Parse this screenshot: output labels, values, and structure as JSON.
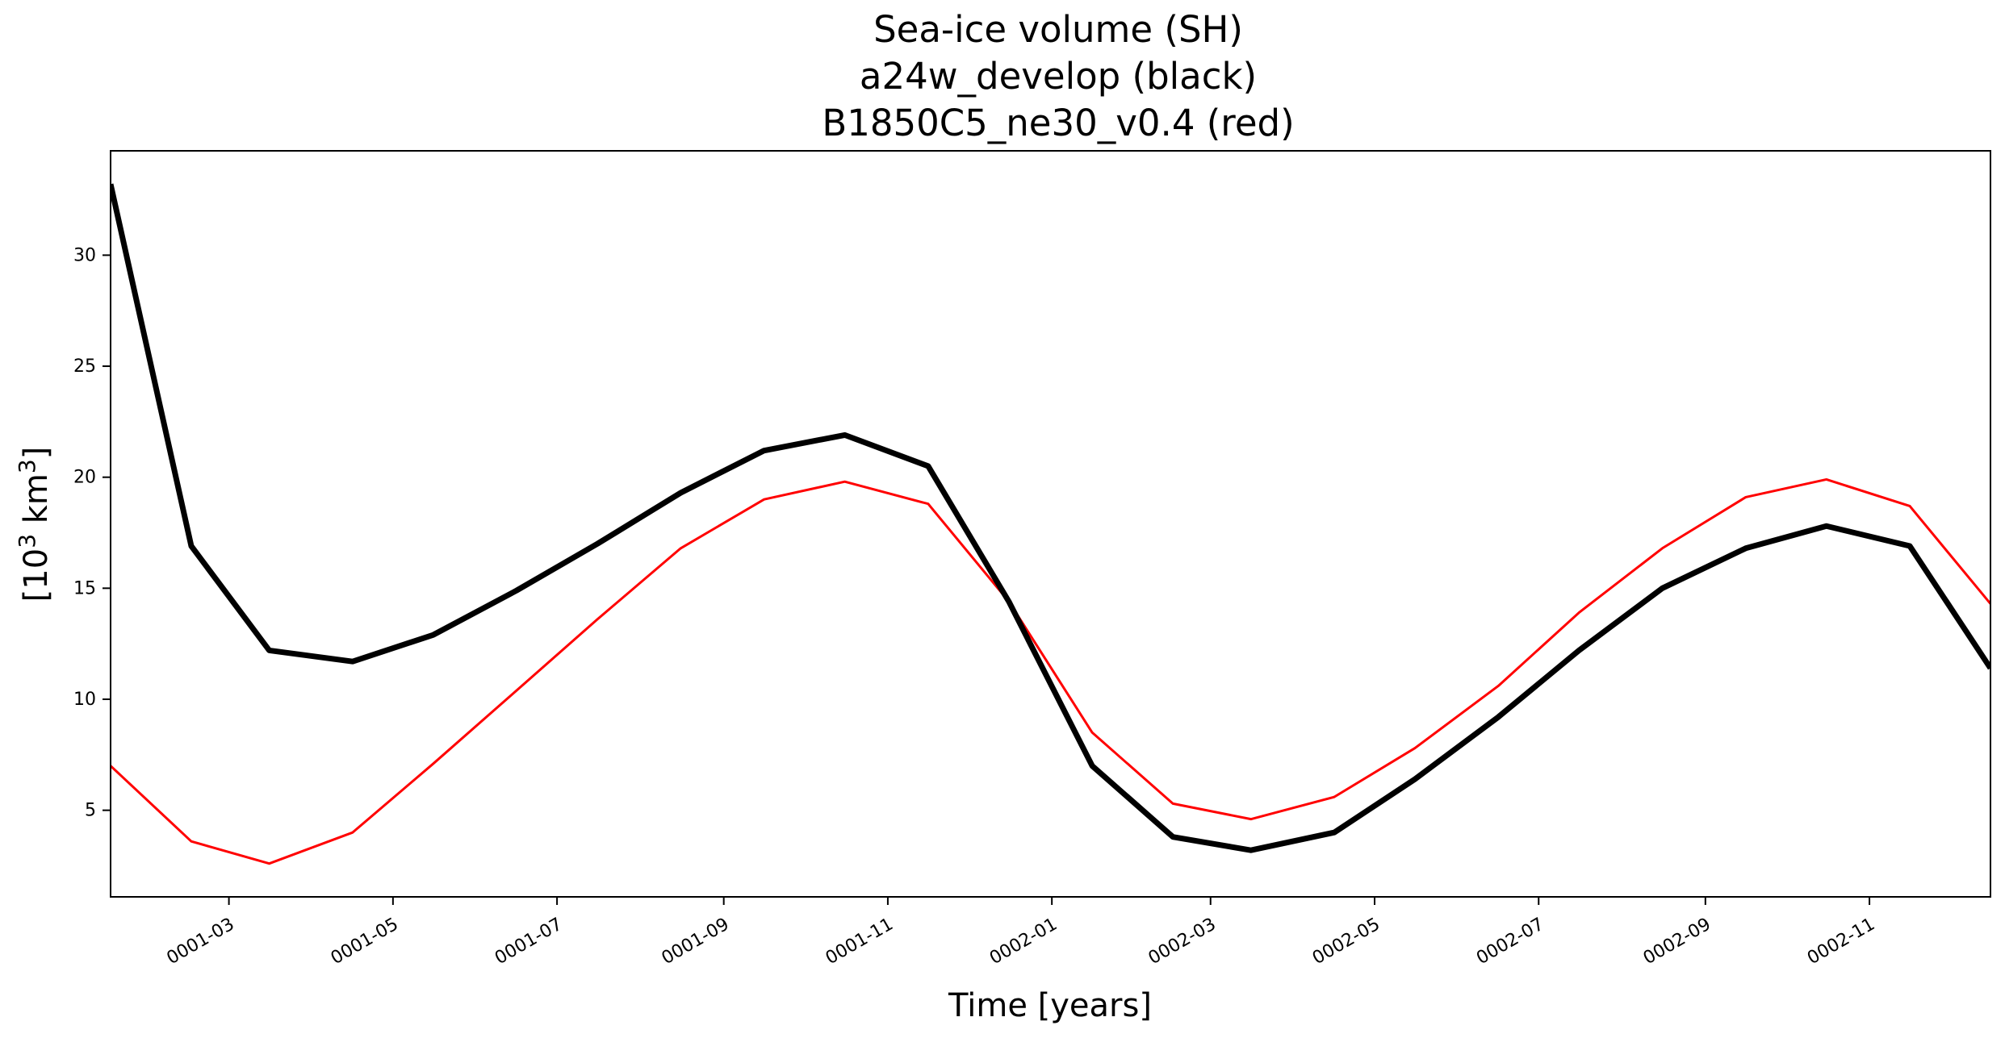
{
  "chart_data": {
    "type": "line",
    "title": [
      "Sea-ice volume (SH)",
      "a24w_develop (black)",
      "B1850C5_ne30_v0.4 (red)"
    ],
    "xlabel": "Time [years]",
    "ylabel_base": "[10",
    "ylabel_sup1": "3",
    "ylabel_mid": " km",
    "ylabel_sup2": "3",
    "ylabel_end": "]",
    "ylim": [
      1.1,
      34.7
    ],
    "yticks": [
      5,
      10,
      15,
      20,
      25,
      30
    ],
    "xlim": [
      "0001-01-16",
      "0002-12-16"
    ],
    "xticks": [
      "0001-03",
      "0001-05",
      "0001-07",
      "0001-09",
      "0001-11",
      "0002-01",
      "0002-03",
      "0002-05",
      "0002-07",
      "0002-09",
      "0002-11"
    ],
    "x": [
      "0001-01-16",
      "0001-02-15",
      "0001-03-16",
      "0001-04-16",
      "0001-05-16",
      "0001-06-16",
      "0001-07-16",
      "0001-08-16",
      "0001-09-16",
      "0001-10-16",
      "0001-11-16",
      "0001-12-16",
      "0002-01-16",
      "0002-02-15",
      "0002-03-16",
      "0002-04-16",
      "0002-05-16",
      "0002-06-16",
      "0002-07-16",
      "0002-08-16",
      "0002-09-16",
      "0002-10-16",
      "0002-11-16",
      "0002-12-16"
    ],
    "series": [
      {
        "name": "a24w_develop",
        "color": "#000000",
        "values": [
          33.2,
          16.9,
          12.2,
          11.7,
          12.9,
          14.9,
          17.0,
          19.3,
          21.2,
          21.9,
          20.5,
          14.4,
          7.0,
          3.8,
          3.2,
          4.0,
          6.4,
          9.2,
          12.2,
          15.0,
          16.8,
          17.8,
          16.9,
          11.4
        ]
      },
      {
        "name": "B1850C5_ne30_v0.4",
        "color": "#ff0000",
        "values": [
          7.0,
          3.6,
          2.6,
          4.0,
          7.1,
          10.4,
          13.6,
          16.8,
          19.0,
          19.8,
          18.8,
          14.4,
          8.5,
          5.3,
          4.6,
          5.6,
          7.8,
          10.6,
          13.9,
          16.8,
          19.1,
          19.9,
          18.7,
          14.3
        ]
      }
    ],
    "grid": false,
    "legend": "none"
  }
}
